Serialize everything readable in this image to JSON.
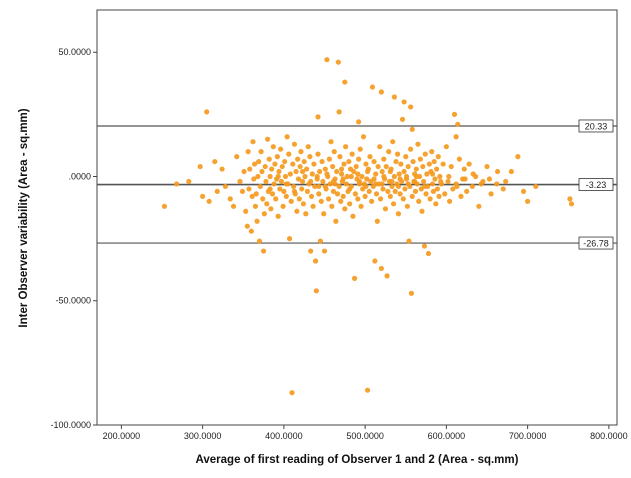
{
  "chart_data": {
    "type": "scatter",
    "xlabel": "Average of first reading of Observer 1 and 2 (Area - sq.mm)",
    "ylabel": "Inter Observer variability (Area - sq.mm)",
    "xlim": [
      170,
      810
    ],
    "ylim": [
      -100,
      67
    ],
    "x_ticks": [
      200,
      300,
      400,
      500,
      600,
      700,
      800
    ],
    "x_tick_labels": [
      "200.0000",
      "300.0000",
      "400.0000",
      "500.0000",
      "600.0000",
      "700.0000",
      "800.0000"
    ],
    "y_ticks": [
      50,
      0,
      -50,
      -100
    ],
    "y_tick_labels": [
      "50.0000",
      ".0000",
      "-50.0000",
      "-100.0000"
    ],
    "reference_lines": [
      {
        "value": 20.33,
        "label": "20.33"
      },
      {
        "value": -3.23,
        "label": "-3.23"
      },
      {
        "value": -26.78,
        "label": "-26.78"
      }
    ],
    "grid": false,
    "legend": "none",
    "marker_color": "#f59a1f",
    "line_color": "#555555",
    "points": [
      [
        253,
        -12
      ],
      [
        268,
        -3
      ],
      [
        283,
        -2
      ],
      [
        297,
        4
      ],
      [
        300,
        -8
      ],
      [
        305,
        26
      ],
      [
        308,
        -10
      ],
      [
        315,
        6
      ],
      [
        318,
        -6
      ],
      [
        324,
        3
      ],
      [
        328,
        -4
      ],
      [
        334,
        -9
      ],
      [
        338,
        -12
      ],
      [
        342,
        8
      ],
      [
        346,
        -2
      ],
      [
        349,
        -6
      ],
      [
        351,
        2
      ],
      [
        353,
        -14
      ],
      [
        355,
        -20
      ],
      [
        356,
        10
      ],
      [
        357,
        -5
      ],
      [
        358,
        3
      ],
      [
        360,
        -22
      ],
      [
        361,
        -8
      ],
      [
        362,
        14
      ],
      [
        363,
        -1
      ],
      [
        364,
        5
      ],
      [
        365,
        -12
      ],
      [
        366,
        -7
      ],
      [
        367,
        -18
      ],
      [
        368,
        0
      ],
      [
        369,
        6
      ],
      [
        370,
        -26
      ],
      [
        371,
        -4
      ],
      [
        372,
        10
      ],
      [
        373,
        2
      ],
      [
        374,
        -9
      ],
      [
        375,
        -30
      ],
      [
        376,
        -15
      ],
      [
        377,
        4
      ],
      [
        378,
        -2
      ],
      [
        379,
        -11
      ],
      [
        380,
        15
      ],
      [
        381,
        -6
      ],
      [
        382,
        7
      ],
      [
        383,
        0
      ],
      [
        384,
        -13
      ],
      [
        385,
        3
      ],
      [
        386,
        -7
      ],
      [
        387,
        12
      ],
      [
        388,
        -3
      ],
      [
        389,
        5
      ],
      [
        390,
        -9
      ],
      [
        391,
        -1
      ],
      [
        392,
        8
      ],
      [
        393,
        -16
      ],
      [
        394,
        2
      ],
      [
        395,
        -5
      ],
      [
        396,
        11
      ],
      [
        397,
        -2
      ],
      [
        398,
        4
      ],
      [
        399,
        -12
      ],
      [
        400,
        -6
      ],
      [
        401,
        6
      ],
      [
        402,
        0
      ],
      [
        403,
        -8
      ],
      [
        404,
        16
      ],
      [
        405,
        -3
      ],
      [
        406,
        9
      ],
      [
        407,
        -25
      ],
      [
        408,
        1
      ],
      [
        409,
        -10
      ],
      [
        410,
        -87
      ],
      [
        411,
        5
      ],
      [
        412,
        -4
      ],
      [
        413,
        13
      ],
      [
        414,
        -7
      ],
      [
        415,
        2
      ],
      [
        416,
        -14
      ],
      [
        417,
        7
      ],
      [
        418,
        -1
      ],
      [
        419,
        -9
      ],
      [
        420,
        4
      ],
      [
        421,
        10
      ],
      [
        422,
        -5
      ],
      [
        423,
        -2
      ],
      [
        424,
        -11
      ],
      [
        425,
        6
      ],
      [
        426,
        0
      ],
      [
        427,
        -15
      ],
      [
        428,
        3
      ],
      [
        429,
        -6
      ],
      [
        430,
        12
      ],
      [
        431,
        -3
      ],
      [
        432,
        8
      ],
      [
        433,
        -30
      ],
      [
        434,
        -8
      ],
      [
        435,
        1
      ],
      [
        436,
        -12
      ],
      [
        437,
        5
      ],
      [
        438,
        -4
      ],
      [
        439,
        -34
      ],
      [
        440,
        -46
      ],
      [
        441,
        -1
      ],
      [
        442,
        9
      ],
      [
        443,
        -7
      ],
      [
        444,
        2
      ],
      [
        445,
        -26
      ],
      [
        446,
        -10
      ],
      [
        447,
        6
      ],
      [
        448,
        -2
      ],
      [
        449,
        -15
      ],
      [
        450,
        -30
      ],
      [
        451,
        3
      ],
      [
        452,
        -5
      ],
      [
        453,
        47
      ],
      [
        454,
        0
      ],
      [
        455,
        -9
      ],
      [
        456,
        7
      ],
      [
        457,
        -3
      ],
      [
        458,
        14
      ],
      [
        459,
        -12
      ],
      [
        460,
        4
      ],
      [
        461,
        -6
      ],
      [
        462,
        10
      ],
      [
        463,
        -1
      ],
      [
        464,
        -18
      ],
      [
        465,
        2
      ],
      [
        466,
        -7
      ],
      [
        467,
        46
      ],
      [
        468,
        -4
      ],
      [
        469,
        8
      ],
      [
        470,
        -10
      ],
      [
        471,
        1
      ],
      [
        472,
        -2
      ],
      [
        473,
        -8
      ],
      [
        474,
        5
      ],
      [
        475,
        -13
      ],
      [
        476,
        12
      ],
      [
        477,
        -3
      ],
      [
        478,
        0
      ],
      [
        479,
        -6
      ],
      [
        480,
        6
      ],
      [
        481,
        -11
      ],
      [
        482,
        3
      ],
      [
        483,
        -4
      ],
      [
        484,
        9
      ],
      [
        485,
        -16
      ],
      [
        486,
        2
      ],
      [
        487,
        -41
      ],
      [
        488,
        -7
      ],
      [
        489,
        4
      ],
      [
        490,
        -1
      ],
      [
        491,
        -9
      ],
      [
        492,
        7
      ],
      [
        493,
        -2
      ],
      [
        494,
        11
      ],
      [
        495,
        -12
      ],
      [
        496,
        0
      ],
      [
        497,
        -5
      ],
      [
        498,
        16
      ],
      [
        499,
        -3
      ],
      [
        500,
        -8
      ],
      [
        501,
        5
      ],
      [
        502,
        -1
      ],
      [
        503,
        -86
      ],
      [
        504,
        3
      ],
      [
        505,
        -6
      ],
      [
        506,
        8
      ],
      [
        507,
        -2
      ],
      [
        508,
        -10
      ],
      [
        509,
        36
      ],
      [
        510,
        -4
      ],
      [
        511,
        6
      ],
      [
        512,
        -34
      ],
      [
        513,
        1
      ],
      [
        514,
        -7
      ],
      [
        515,
        -18
      ],
      [
        516,
        4
      ],
      [
        517,
        -3
      ],
      [
        518,
        12
      ],
      [
        519,
        -9
      ],
      [
        520,
        -37
      ],
      [
        521,
        2
      ],
      [
        522,
        -5
      ],
      [
        523,
        7
      ],
      [
        524,
        -1
      ],
      [
        525,
        -13
      ],
      [
        526,
        4
      ],
      [
        527,
        -40
      ],
      [
        528,
        -6
      ],
      [
        529,
        10
      ],
      [
        530,
        -2
      ],
      [
        531,
        -8
      ],
      [
        532,
        3
      ],
      [
        533,
        -4
      ],
      [
        534,
        14
      ],
      [
        535,
        -11
      ],
      [
        536,
        0
      ],
      [
        537,
        -6
      ],
      [
        538,
        6
      ],
      [
        539,
        -3
      ],
      [
        540,
        9
      ],
      [
        541,
        -15
      ],
      [
        542,
        1
      ],
      [
        543,
        -7
      ],
      [
        544,
        5
      ],
      [
        545,
        -2
      ],
      [
        546,
        23
      ],
      [
        547,
        -9
      ],
      [
        548,
        2
      ],
      [
        549,
        -5
      ],
      [
        550,
        8
      ],
      [
        551,
        -1
      ],
      [
        552,
        -12
      ],
      [
        553,
        4
      ],
      [
        554,
        -26
      ],
      [
        555,
        -4
      ],
      [
        556,
        11
      ],
      [
        557,
        -47
      ],
      [
        558,
        -8
      ],
      [
        559,
        6
      ],
      [
        560,
        -2
      ],
      [
        561,
        1
      ],
      [
        562,
        -6
      ],
      [
        563,
        3
      ],
      [
        564,
        -3
      ],
      [
        565,
        13
      ],
      [
        566,
        -10
      ],
      [
        567,
        0
      ],
      [
        568,
        7
      ],
      [
        569,
        -5
      ],
      [
        570,
        -14
      ],
      [
        571,
        4
      ],
      [
        572,
        -2
      ],
      [
        573,
        -28
      ],
      [
        574,
        9
      ],
      [
        575,
        -7
      ],
      [
        576,
        1
      ],
      [
        577,
        -4
      ],
      [
        578,
        -31
      ],
      [
        579,
        5
      ],
      [
        580,
        -9
      ],
      [
        581,
        2
      ],
      [
        582,
        10
      ],
      [
        583,
        -3
      ],
      [
        584,
        -6
      ],
      [
        585,
        6
      ],
      [
        586,
        -1
      ],
      [
        587,
        -11
      ],
      [
        588,
        3
      ],
      [
        589,
        -5
      ],
      [
        590,
        8
      ],
      [
        591,
        -8
      ],
      [
        592,
        0
      ],
      [
        594,
        -3
      ],
      [
        596,
        5
      ],
      [
        598,
        -7
      ],
      [
        600,
        12
      ],
      [
        602,
        -2
      ],
      [
        604,
        -10
      ],
      [
        606,
        4
      ],
      [
        608,
        -5
      ],
      [
        610,
        25
      ],
      [
        612,
        -3
      ],
      [
        614,
        21
      ],
      [
        616,
        7
      ],
      [
        618,
        -8
      ],
      [
        620,
        -1
      ],
      [
        622,
        3
      ],
      [
        625,
        -6
      ],
      [
        628,
        5
      ],
      [
        632,
        -4
      ],
      [
        636,
        0
      ],
      [
        640,
        -12
      ],
      [
        645,
        -2
      ],
      [
        650,
        4
      ],
      [
        655,
        -7
      ],
      [
        662,
        -3
      ],
      [
        670,
        -5
      ],
      [
        680,
        2
      ],
      [
        688,
        8
      ],
      [
        695,
        -6
      ],
      [
        700,
        -10
      ],
      [
        710,
        -4
      ],
      [
        752,
        -9
      ],
      [
        754,
        -11
      ],
      [
        441,
        0
      ],
      [
        451,
        -4
      ],
      [
        461,
        -2
      ],
      [
        471,
        3
      ],
      [
        481,
        -5
      ],
      [
        491,
        1
      ],
      [
        501,
        -4
      ],
      [
        511,
        -1
      ],
      [
        521,
        -3
      ],
      [
        531,
        2
      ],
      [
        541,
        -4
      ],
      [
        551,
        0
      ],
      [
        561,
        -2
      ],
      [
        383,
        -5
      ],
      [
        393,
        0
      ],
      [
        403,
        -3
      ],
      [
        413,
        -6
      ],
      [
        423,
        2
      ],
      [
        433,
        -2
      ],
      [
        443,
        -4
      ],
      [
        453,
        1
      ],
      [
        463,
        -3
      ],
      [
        473,
        -1
      ],
      [
        483,
        0
      ],
      [
        493,
        -3
      ],
      [
        503,
        2
      ],
      [
        513,
        -3
      ],
      [
        523,
        0
      ],
      [
        533,
        -2
      ],
      [
        543,
        -1
      ],
      [
        553,
        -3
      ],
      [
        563,
        0
      ],
      [
        573,
        -4
      ],
      [
        583,
        1
      ],
      [
        593,
        -2
      ],
      [
        603,
        0
      ],
      [
        613,
        -4
      ],
      [
        623,
        -1
      ],
      [
        633,
        1
      ],
      [
        643,
        -3
      ],
      [
        653,
        -1
      ],
      [
        663,
        2
      ],
      [
        673,
        -2
      ],
      [
        520,
        34
      ],
      [
        548,
        30
      ],
      [
        556,
        28
      ],
      [
        475,
        38
      ],
      [
        536,
        32
      ],
      [
        492,
        22
      ],
      [
        558,
        19
      ],
      [
        612,
        16
      ],
      [
        468,
        26
      ],
      [
        442,
        24
      ]
    ]
  }
}
